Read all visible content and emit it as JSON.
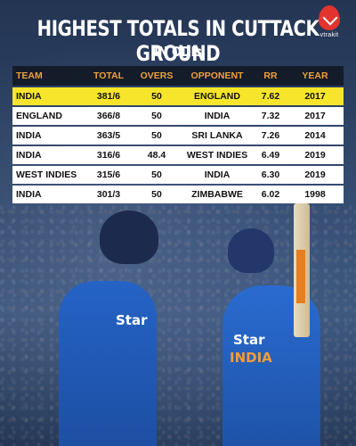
{
  "brand": {
    "name": "vtrakit"
  },
  "title": "HIGHEST TOTALS IN CUTTACK GROUND",
  "subtitle": "IN ODIs",
  "table": {
    "headers": [
      "TEAM",
      "TOTAL",
      "OVERS",
      "OPPONENT",
      "RR",
      "YEAR"
    ],
    "rows": [
      [
        "INDIA",
        "381/6",
        "50",
        "ENGLAND",
        "7.62",
        "2017"
      ],
      [
        "ENGLAND",
        "366/8",
        "50",
        "INDIA",
        "7.32",
        "2017"
      ],
      [
        "INDIA",
        "363/5",
        "50",
        "SRI LANKA",
        "7.26",
        "2014"
      ],
      [
        "INDIA",
        "316/6",
        "48.4",
        "WEST INDIES",
        "6.49",
        "2019"
      ],
      [
        "WEST INDIES",
        "315/6",
        "50",
        "INDIA",
        "6.30",
        "2019"
      ],
      [
        "INDIA",
        "301/3",
        "50",
        "ZIMBABWE",
        "6.02",
        "1998"
      ]
    ],
    "highlight_color": "#f6e52a",
    "header_text_color": "#f0a13a"
  },
  "jersey": {
    "sponsor": "Star",
    "country": "INDIA"
  }
}
